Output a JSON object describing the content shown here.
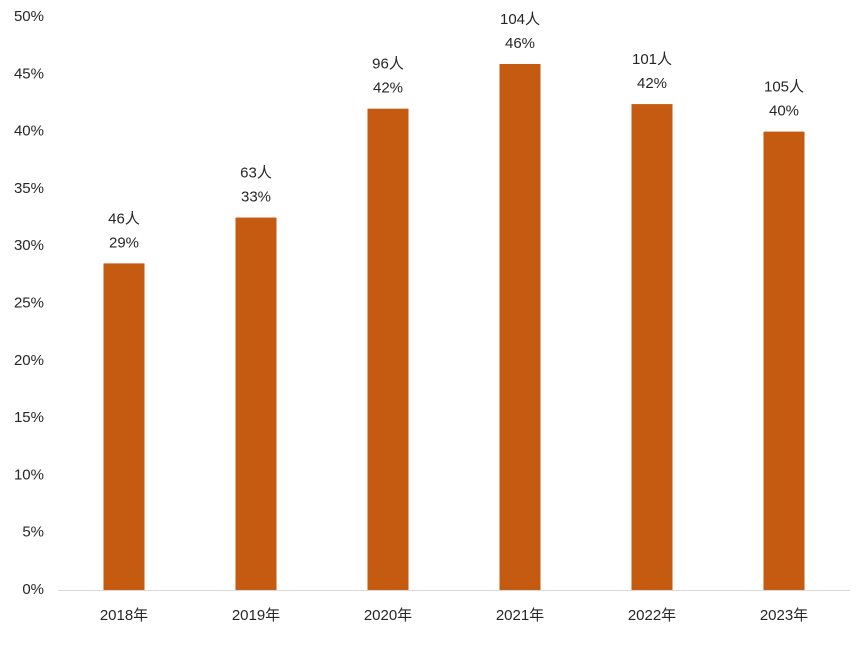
{
  "chart_data": {
    "type": "bar",
    "title": "",
    "xlabel": "",
    "ylabel": "",
    "ylim": [
      0,
      50
    ],
    "grid": false,
    "categories": [
      "2018年",
      "2019年",
      "2020年",
      "2021年",
      "2022年",
      "2023年"
    ],
    "values": [
      28.5,
      32.5,
      42.0,
      45.9,
      42.4,
      40.0
    ],
    "data_labels": [
      {
        "count": "46人",
        "pct": "29%"
      },
      {
        "count": "63人",
        "pct": "33%"
      },
      {
        "count": "96人",
        "pct": "42%"
      },
      {
        "count": "104人",
        "pct": "46%"
      },
      {
        "count": "101人",
        "pct": "42%"
      },
      {
        "count": "105人",
        "pct": "40%"
      }
    ],
    "yticks": [
      {
        "value": 0,
        "label": "0%"
      },
      {
        "value": 5,
        "label": "5%"
      },
      {
        "value": 10,
        "label": "10%"
      },
      {
        "value": 15,
        "label": "15%"
      },
      {
        "value": 20,
        "label": "20%"
      },
      {
        "value": 25,
        "label": "25%"
      },
      {
        "value": 30,
        "label": "30%"
      },
      {
        "value": 35,
        "label": "35%"
      },
      {
        "value": 40,
        "label": "40%"
      },
      {
        "value": 45,
        "label": "45%"
      },
      {
        "value": 50,
        "label": "50%"
      }
    ],
    "bar_color": "#C55A11",
    "axis_color": "#D9D9D9"
  }
}
